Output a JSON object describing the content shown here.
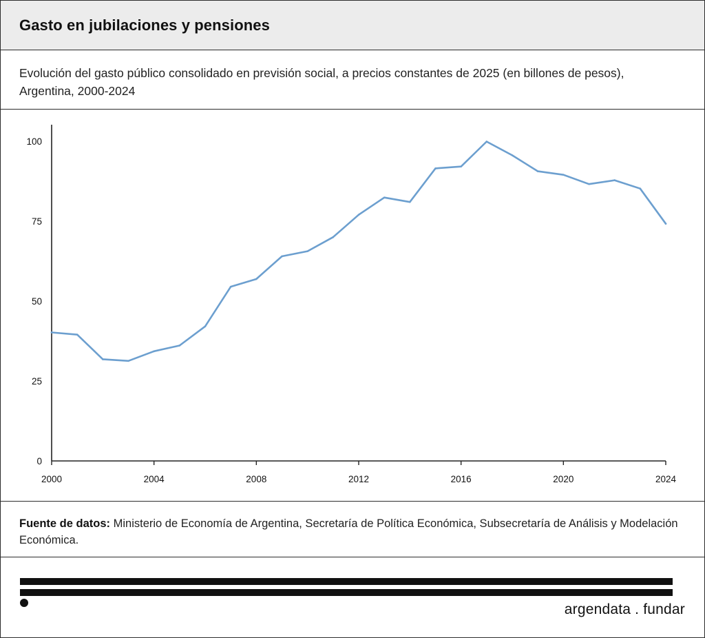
{
  "header": {
    "title": "Gasto en jubilaciones y pensiones"
  },
  "subtitle": "Evolución del gasto público consolidado en previsión social, a precios constantes de 2025 (en billones de pesos), Argentina, 2000-2024",
  "source": {
    "label": "Fuente de datos:",
    "text": "Ministerio de Economía de Argentina, Secretaría de Política Económica, Subsecretaría de Análisis y Modelación Económica."
  },
  "brand": {
    "name": "argendata . fundar"
  },
  "chart_data": {
    "type": "line",
    "title": "",
    "xlabel": "",
    "ylabel": "",
    "xlim": [
      2000,
      2024
    ],
    "ylim": [
      0,
      105
    ],
    "xticks": [
      2000,
      2004,
      2008,
      2012,
      2016,
      2020,
      2024
    ],
    "yticks": [
      0,
      25,
      50,
      75,
      100
    ],
    "grid": false,
    "series": [
      {
        "color": "#6c9fcf",
        "x": [
          2000,
          2001,
          2002,
          2003,
          2004,
          2005,
          2006,
          2007,
          2008,
          2009,
          2010,
          2011,
          2012,
          2013,
          2014,
          2015,
          2016,
          2017,
          2018,
          2019,
          2020,
          2021,
          2022,
          2023,
          2024
        ],
        "y": [
          40.2,
          39.5,
          31.8,
          31.3,
          34.3,
          36.1,
          42.1,
          54.5,
          56.9,
          64.0,
          65.6,
          70.0,
          77.0,
          82.4,
          81.0,
          91.5,
          92.1,
          99.9,
          95.6,
          90.6,
          89.5,
          86.6,
          87.8,
          85.2,
          74.2
        ]
      }
    ]
  }
}
